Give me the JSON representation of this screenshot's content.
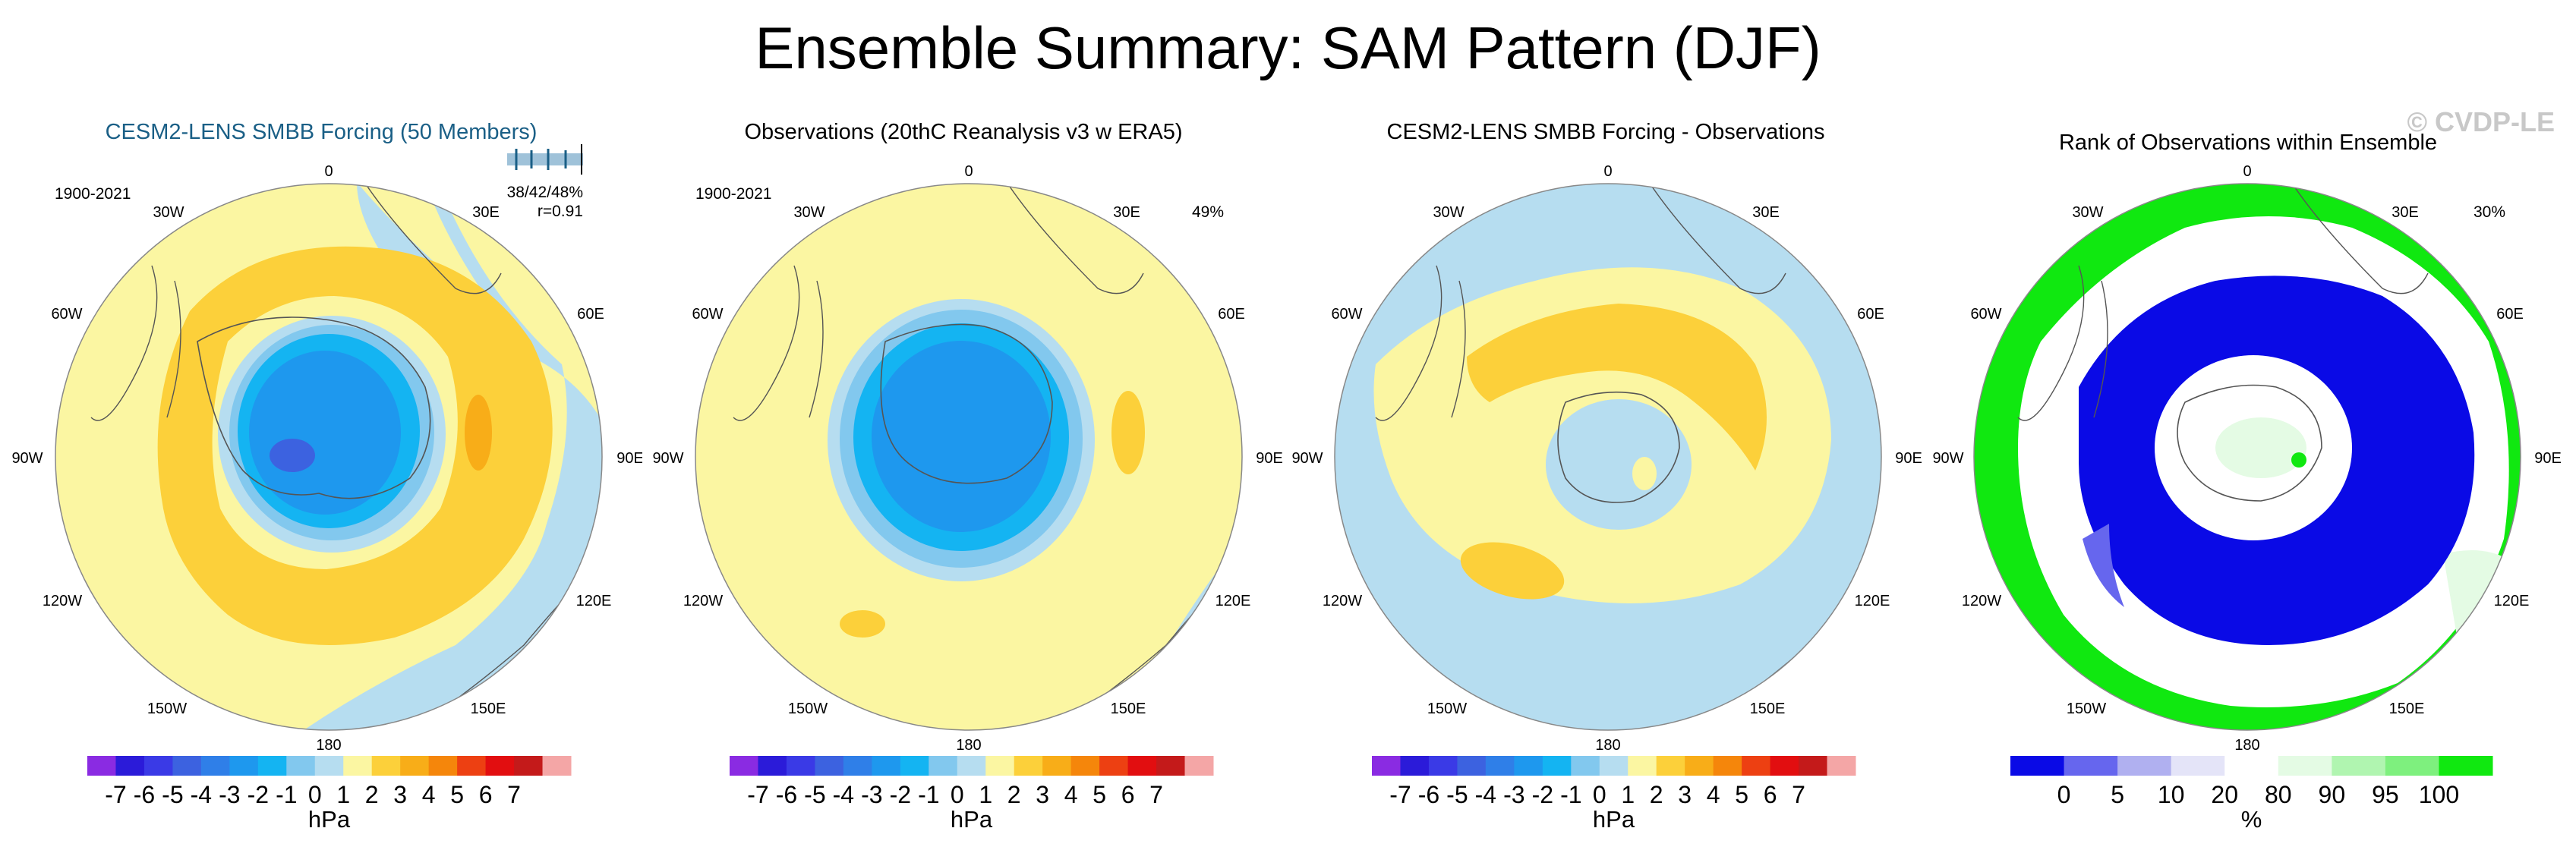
{
  "title": "Ensemble Summary: SAM Pattern (DJF)",
  "watermark": "© CVDP-LE",
  "colors": {
    "title_blue": "#1a5f86",
    "land": "#ffffff",
    "coast": "#555555"
  },
  "chart_data": [
    {
      "type": "polar-contour-map",
      "title": "CESM2-LENS SMBB Forcing (50 Members)",
      "period": "1900-2021",
      "stats": {
        "ratio": "38/42/48%",
        "corr": "r=0.91"
      },
      "longitude_labels": [
        "0",
        "30E",
        "60E",
        "90E",
        "120E",
        "150E",
        "180",
        "150W",
        "120W",
        "90W",
        "60W",
        "30W"
      ],
      "colorbar": {
        "labels": [
          "-7",
          "-6",
          "-5",
          "-4",
          "-3",
          "-2",
          "-1",
          "0",
          "1",
          "2",
          "3",
          "4",
          "5",
          "6",
          "7"
        ],
        "unit": "hPa",
        "colors": [
          "#8a2be2",
          "#2b1bd9",
          "#3a3ae6",
          "#3c62e0",
          "#2f7fe8",
          "#1e98ee",
          "#14b4f2",
          "#82c8ee",
          "#b6ddf0",
          "#fbf6a2",
          "#fcd03a",
          "#f8ad18",
          "#f5860b",
          "#ed4012",
          "#e20e10",
          "#c41a1a",
          "#f4a6a6"
        ]
      },
      "note": "Negative anomaly over Antarctica (~-4 hPa), positive ring at midlatitudes (~+2 hPa)"
    },
    {
      "type": "polar-contour-map",
      "title": "Observations (20thC Reanalysis v3 w ERA5)",
      "period": "1900-2021",
      "stats": {
        "pct": "49%"
      },
      "longitude_labels": [
        "0",
        "30E",
        "60E",
        "90E",
        "120E",
        "150E",
        "180",
        "150W",
        "120W",
        "90W",
        "60W",
        "30W"
      ],
      "colorbar": {
        "labels": [
          "-7",
          "-6",
          "-5",
          "-4",
          "-3",
          "-2",
          "-1",
          "0",
          "1",
          "2",
          "3",
          "4",
          "5",
          "6",
          "7"
        ],
        "unit": "hPa"
      }
    },
    {
      "type": "polar-contour-map",
      "title": "CESM2-LENS SMBB Forcing - Observations",
      "longitude_labels": [
        "0",
        "30E",
        "60E",
        "90E",
        "120E",
        "150E",
        "180",
        "150W",
        "120W",
        "90W",
        "60W",
        "30W"
      ],
      "colorbar": {
        "labels": [
          "-7",
          "-6",
          "-5",
          "-4",
          "-3",
          "-2",
          "-1",
          "0",
          "1",
          "2",
          "3",
          "4",
          "5",
          "6",
          "7"
        ],
        "unit": "hPa"
      }
    },
    {
      "type": "polar-rank-map",
      "title": "Rank of Observations within Ensemble",
      "stats": {
        "pct": "30%"
      },
      "longitude_labels": [
        "0",
        "30E",
        "60E",
        "90E",
        "120E",
        "150E",
        "180",
        "150W",
        "120W",
        "90W",
        "60W",
        "30W"
      ],
      "colorbar": {
        "labels": [
          "0",
          "5",
          "10",
          "20",
          "80",
          "90",
          "95",
          "100"
        ],
        "unit": "%",
        "colors": [
          "#0a0ae6",
          "#6666ee",
          "#b0b0f0",
          "#e4e4f8",
          "#ffffff",
          "#e4fbe4",
          "#b0f5b0",
          "#7ef07e",
          "#10e810"
        ]
      }
    }
  ]
}
